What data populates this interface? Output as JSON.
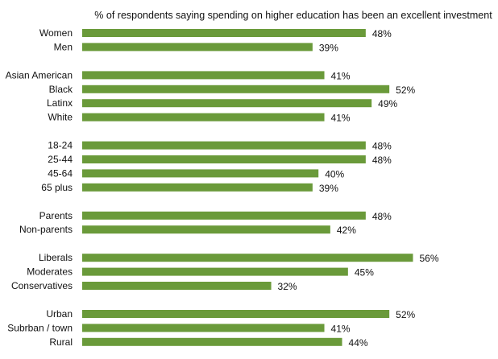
{
  "chart_data": {
    "type": "bar",
    "orientation": "horizontal",
    "title": "% of respondents saying spending on higher education has been an excellent investment",
    "xlabel": "",
    "ylabel": "",
    "xlim": [
      0,
      60
    ],
    "grid": false,
    "bar_color": "#6a9a3a",
    "groups": [
      {
        "categories": [
          "Women",
          "Men"
        ],
        "values": [
          48,
          39
        ],
        "labels": [
          "48%",
          "39%"
        ]
      },
      {
        "categories": [
          "Asian American",
          "Black",
          "Latinx",
          "White"
        ],
        "values": [
          41,
          52,
          49,
          41
        ],
        "labels": [
          "41%",
          "52%",
          "49%",
          "41%"
        ]
      },
      {
        "categories": [
          "18-24",
          "25-44",
          "45-64",
          "65 plus"
        ],
        "values": [
          48,
          48,
          40,
          39
        ],
        "labels": [
          "48%",
          "48%",
          "40%",
          "39%"
        ]
      },
      {
        "categories": [
          "Parents",
          "Non-parents"
        ],
        "values": [
          48,
          42
        ],
        "labels": [
          "48%",
          "42%"
        ]
      },
      {
        "categories": [
          "Liberals",
          "Moderates",
          "Conservatives"
        ],
        "values": [
          56,
          45,
          32
        ],
        "labels": [
          "56%",
          "45%",
          "32%"
        ]
      },
      {
        "categories": [
          "Urban",
          "Subrban / town",
          "Rural"
        ],
        "values": [
          52,
          41,
          44
        ],
        "labels": [
          "52%",
          "41%",
          "44%"
        ]
      }
    ]
  }
}
